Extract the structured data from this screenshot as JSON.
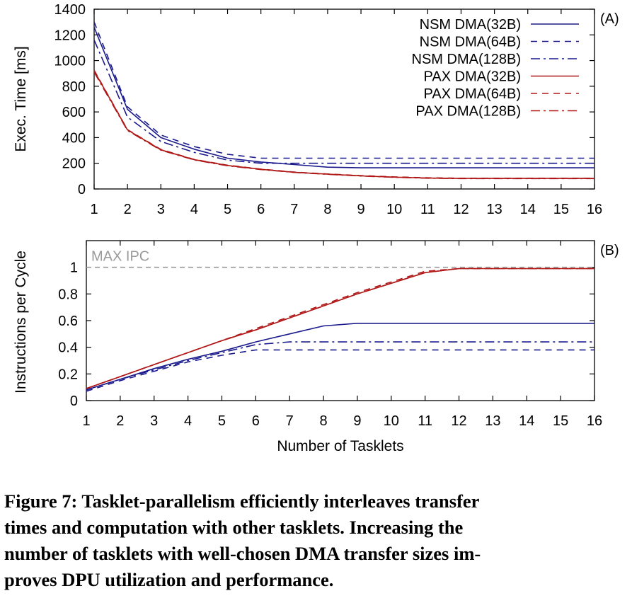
{
  "chart_data": [
    {
      "type": "line",
      "panel_label": "(A)",
      "xlabel": "",
      "ylabel": "Exec. Time [ms]",
      "x": [
        1,
        2,
        3,
        4,
        5,
        6,
        7,
        8,
        9,
        10,
        11,
        12,
        13,
        14,
        15,
        16
      ],
      "xlim": [
        1,
        16
      ],
      "ylim": [
        0,
        1400
      ],
      "yticks": [
        0,
        200,
        400,
        600,
        800,
        1000,
        1200,
        1400
      ],
      "legend_position": "top-right",
      "series": [
        {
          "name": "NSM DMA(32B)",
          "color": "#1a1a8c",
          "dash": "solid",
          "values": [
            1260,
            620,
            400,
            310,
            240,
            210,
            190,
            170,
            165,
            165,
            165,
            165,
            165,
            165,
            165,
            165
          ]
        },
        {
          "name": "NSM DMA(64B)",
          "color": "#1a1a8c",
          "dash": "dashed",
          "values": [
            1300,
            640,
            420,
            330,
            270,
            240,
            240,
            240,
            240,
            240,
            240,
            240,
            240,
            240,
            240,
            240
          ]
        },
        {
          "name": "NSM DMA(128B)",
          "color": "#1a1a8c",
          "dash": "dashdot",
          "values": [
            1160,
            560,
            370,
            285,
            225,
            200,
            200,
            200,
            200,
            200,
            200,
            200,
            200,
            200,
            200,
            200
          ]
        },
        {
          "name": "PAX DMA(32B)",
          "color": "#b01818",
          "dash": "solid",
          "values": [
            920,
            460,
            305,
            228,
            183,
            153,
            130,
            115,
            102,
            92,
            85,
            82,
            82,
            82,
            82,
            82
          ]
        },
        {
          "name": "PAX DMA(64B)",
          "color": "#b01818",
          "dash": "dashed",
          "values": [
            925,
            462,
            308,
            230,
            185,
            155,
            132,
            117,
            104,
            94,
            87,
            84,
            84,
            84,
            84,
            84
          ]
        },
        {
          "name": "PAX DMA(128B)",
          "color": "#b01818",
          "dash": "dashdot",
          "values": [
            910,
            455,
            302,
            226,
            181,
            151,
            129,
            114,
            101,
            91,
            84,
            81,
            81,
            81,
            81,
            81
          ]
        }
      ]
    },
    {
      "type": "line",
      "panel_label": "(B)",
      "xlabel": "Number of Tasklets",
      "ylabel": "Instructions per Cycle",
      "x": [
        1,
        2,
        3,
        4,
        5,
        6,
        7,
        8,
        9,
        10,
        11,
        12,
        13,
        14,
        15,
        16
      ],
      "xlim": [
        1,
        16
      ],
      "ylim": [
        0,
        1.2
      ],
      "yticks": [
        0,
        0.2,
        0.4,
        0.6,
        0.8,
        1
      ],
      "reference_line": {
        "label": "MAX IPC",
        "value": 1,
        "color": "#9a9a9a"
      },
      "series": [
        {
          "name": "NSM DMA(32B)",
          "color": "#1a1a8c",
          "dash": "solid",
          "values": [
            0.08,
            0.16,
            0.24,
            0.31,
            0.37,
            0.44,
            0.5,
            0.56,
            0.58,
            0.58,
            0.58,
            0.58,
            0.58,
            0.58,
            0.58,
            0.58
          ]
        },
        {
          "name": "NSM DMA(64B)",
          "color": "#1a1a8c",
          "dash": "dashed",
          "values": [
            0.07,
            0.15,
            0.22,
            0.29,
            0.34,
            0.38,
            0.38,
            0.38,
            0.38,
            0.38,
            0.38,
            0.38,
            0.38,
            0.38,
            0.38,
            0.38
          ]
        },
        {
          "name": "NSM DMA(128B)",
          "color": "#1a1a8c",
          "dash": "dashdot",
          "values": [
            0.08,
            0.16,
            0.23,
            0.3,
            0.36,
            0.42,
            0.44,
            0.44,
            0.44,
            0.44,
            0.44,
            0.44,
            0.44,
            0.44,
            0.44,
            0.44
          ]
        },
        {
          "name": "PAX DMA(32B)",
          "color": "#b01818",
          "dash": "solid",
          "values": [
            0.09,
            0.18,
            0.27,
            0.36,
            0.45,
            0.53,
            0.62,
            0.71,
            0.8,
            0.88,
            0.96,
            0.99,
            0.99,
            0.99,
            0.99,
            0.99
          ]
        },
        {
          "name": "PAX DMA(64B)",
          "color": "#b01818",
          "dash": "dashed",
          "values": [
            0.09,
            0.18,
            0.27,
            0.36,
            0.45,
            0.54,
            0.63,
            0.72,
            0.81,
            0.89,
            0.97,
            0.99,
            0.99,
            0.99,
            0.99,
            0.99
          ]
        },
        {
          "name": "PAX DMA(128B)",
          "color": "#b01818",
          "dash": "dashdot",
          "values": [
            0.09,
            0.18,
            0.27,
            0.36,
            0.45,
            0.53,
            0.62,
            0.71,
            0.8,
            0.88,
            0.96,
            0.99,
            0.99,
            0.99,
            0.99,
            0.99
          ]
        }
      ]
    }
  ],
  "caption": "Figure 7: Tasklet-parallelism efficiently interleaves transfer\ntimes and computation with other tasklets. Increasing the\nnumber of tasklets with well-chosen DMA transfer sizes im-\nproves DPU utilization and performance."
}
